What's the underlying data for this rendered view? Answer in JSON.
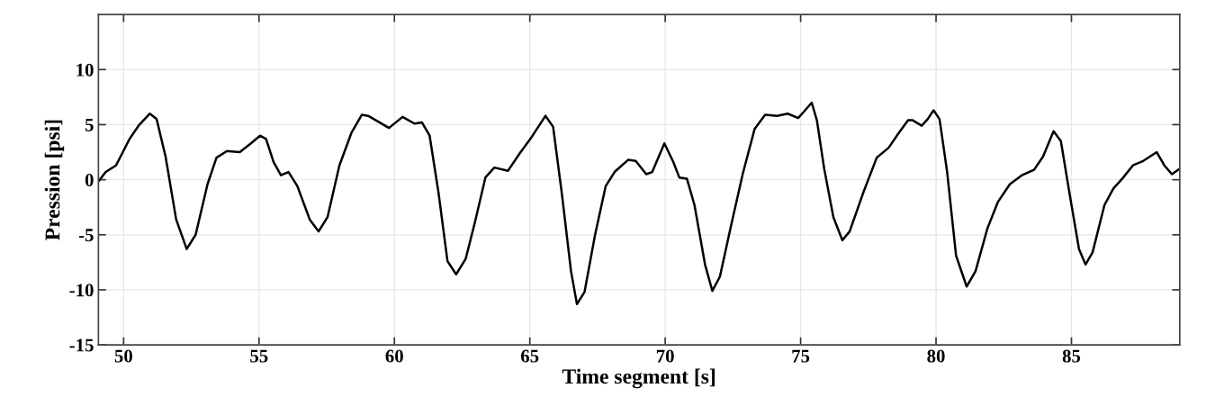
{
  "chart_data": {
    "type": "line",
    "xlabel": "Time segment [s]",
    "ylabel": "Pression [psi]",
    "xlim": [
      49.07,
      89.0
    ],
    "ylim": [
      -15,
      15
    ],
    "xticks": [
      50,
      55,
      60,
      65,
      70,
      75,
      80,
      85
    ],
    "yticks": [
      -15,
      -10,
      -5,
      0,
      5,
      10
    ],
    "grid": true,
    "marker": "none",
    "line_style": "solid",
    "series": [
      {
        "color": "#000000",
        "x": [
          49.09,
          49.34,
          49.72,
          50.22,
          50.55,
          50.97,
          51.22,
          51.55,
          51.94,
          52.33,
          52.66,
          53.1,
          53.43,
          53.82,
          54.29,
          54.65,
          55.04,
          55.26,
          55.54,
          55.81,
          56.09,
          56.42,
          56.87,
          57.2,
          57.53,
          57.97,
          58.42,
          58.8,
          59.03,
          59.8,
          60.3,
          60.74,
          61.02,
          61.3,
          61.63,
          61.96,
          62.28,
          62.63,
          62.97,
          63.36,
          63.69,
          64.19,
          64.63,
          65.02,
          65.58,
          65.86,
          66.19,
          66.52,
          66.74,
          67.02,
          67.41,
          67.8,
          68.13,
          68.63,
          68.91,
          69.3,
          69.52,
          69.97,
          70.3,
          70.52,
          70.8,
          71.08,
          71.47,
          71.74,
          72.02,
          72.41,
          72.86,
          73.3,
          73.69,
          74.13,
          74.52,
          74.91,
          75.13,
          75.41,
          75.6,
          75.87,
          76.21,
          76.54,
          76.81,
          77.31,
          77.81,
          78.25,
          78.64,
          78.97,
          79.14,
          79.47,
          79.69,
          79.91,
          80.13,
          80.41,
          80.74,
          81.13,
          81.46,
          81.9,
          82.29,
          82.73,
          83.17,
          83.62,
          83.95,
          84.34,
          84.61,
          84.94,
          85.28,
          85.52,
          85.78,
          86.22,
          86.55,
          86.88,
          87.27,
          87.65,
          88.15,
          88.43,
          88.71,
          89.0
        ],
        "values": [
          -0.1,
          0.7,
          1.3,
          3.7,
          4.9,
          6.0,
          5.5,
          2.1,
          -3.6,
          -6.3,
          -5.0,
          -0.4,
          2.0,
          2.6,
          2.5,
          3.2,
          4.0,
          3.7,
          1.6,
          0.4,
          0.7,
          -0.6,
          -3.6,
          -4.7,
          -3.4,
          1.3,
          4.3,
          5.9,
          5.8,
          4.7,
          5.7,
          5.1,
          5.2,
          4.0,
          -1.2,
          -7.4,
          -8.6,
          -7.2,
          -3.9,
          0.2,
          1.1,
          0.8,
          2.4,
          3.7,
          5.8,
          4.8,
          -1.4,
          -8.3,
          -11.3,
          -10.2,
          -5.0,
          -0.6,
          0.7,
          1.8,
          1.7,
          0.5,
          0.7,
          3.3,
          1.6,
          0.2,
          0.1,
          -2.3,
          -7.7,
          -10.1,
          -8.8,
          -4.4,
          0.5,
          4.6,
          5.9,
          5.8,
          6.0,
          5.6,
          6.2,
          7.0,
          5.4,
          1.0,
          -3.4,
          -5.5,
          -4.7,
          -1.2,
          2.0,
          2.9,
          4.3,
          5.4,
          5.4,
          4.9,
          5.5,
          6.3,
          5.5,
          0.7,
          -6.9,
          -9.7,
          -8.3,
          -4.4,
          -2.0,
          -0.4,
          0.4,
          0.9,
          2.1,
          4.4,
          3.5,
          -1.4,
          -6.3,
          -7.7,
          -6.6,
          -2.3,
          -0.8,
          0.1,
          1.3,
          1.7,
          2.5,
          1.3,
          0.5,
          1.0
        ]
      }
    ]
  }
}
